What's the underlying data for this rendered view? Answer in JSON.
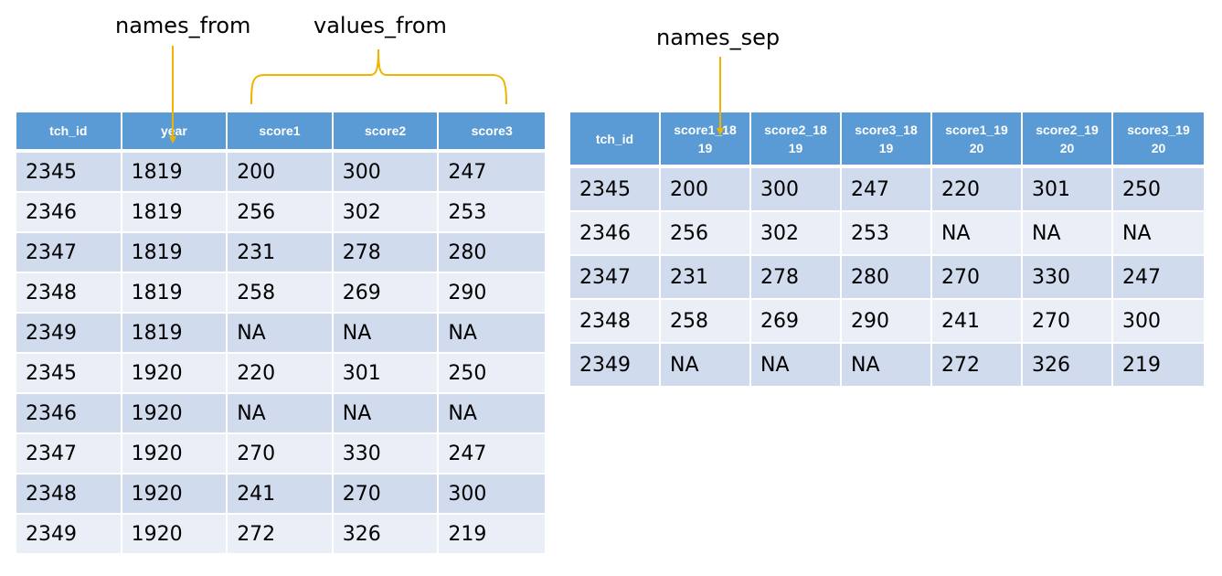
{
  "annotations": {
    "names_from": "names_from",
    "values_from": "values_from",
    "names_sep": "names_sep",
    "arrow_color": "#f0b400"
  },
  "colors": {
    "header_bg": "#5b9bd5",
    "row_odd_bg": "#d0dbed",
    "row_even_bg": "#e9eef7"
  },
  "left_table": {
    "headers": [
      "tch_id",
      "year",
      "score1",
      "score2",
      "score3"
    ],
    "rows": [
      [
        "2345",
        "1819",
        "200",
        "300",
        "247"
      ],
      [
        "2346",
        "1819",
        "256",
        "302",
        "253"
      ],
      [
        "2347",
        "1819",
        "231",
        "278",
        "280"
      ],
      [
        "2348",
        "1819",
        "258",
        "269",
        "290"
      ],
      [
        "2349",
        "1819",
        "NA",
        "NA",
        "NA"
      ],
      [
        "2345",
        "1920",
        "220",
        "301",
        "250"
      ],
      [
        "2346",
        "1920",
        "NA",
        "NA",
        "NA"
      ],
      [
        "2347",
        "1920",
        "270",
        "330",
        "247"
      ],
      [
        "2348",
        "1920",
        "241",
        "270",
        "300"
      ],
      [
        "2349",
        "1920",
        "272",
        "326",
        "219"
      ]
    ]
  },
  "right_table": {
    "headers": [
      [
        "tch_id",
        ""
      ],
      [
        "score1_18",
        "19"
      ],
      [
        "score2_18",
        "19"
      ],
      [
        "score3_18",
        "19"
      ],
      [
        "score1_19",
        "20"
      ],
      [
        "score2_19",
        "20"
      ],
      [
        "score3_19",
        "20"
      ]
    ],
    "rows": [
      [
        "2345",
        "200",
        "300",
        "247",
        "220",
        "301",
        "250"
      ],
      [
        "2346",
        "256",
        "302",
        "253",
        "NA",
        "NA",
        "NA"
      ],
      [
        "2347",
        "231",
        "278",
        "280",
        "270",
        "330",
        "247"
      ],
      [
        "2348",
        "258",
        "269",
        "290",
        "241",
        "270",
        "300"
      ],
      [
        "2349",
        "NA",
        "NA",
        "NA",
        "272",
        "326",
        "219"
      ]
    ]
  }
}
